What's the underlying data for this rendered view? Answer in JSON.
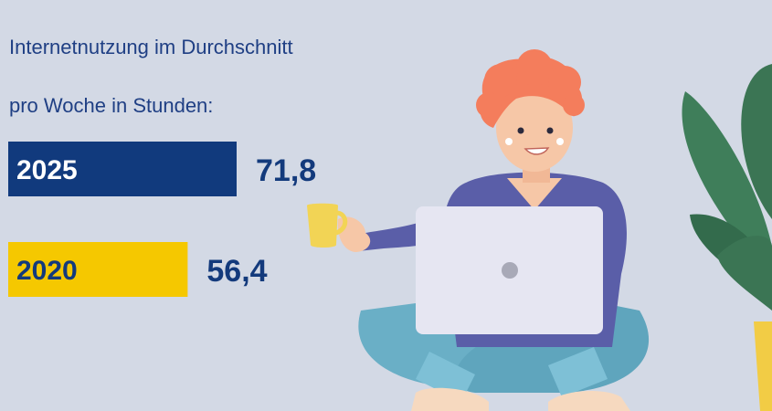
{
  "title_line1": "Internetnutzung im Durchschnitt",
  "title_line2": "pro Woche in Stunden:",
  "chart_data": {
    "type": "bar",
    "orientation": "horizontal",
    "title": "Internetnutzung im Durchschnitt pro Woche in Stunden:",
    "categories": [
      "2025",
      "2020"
    ],
    "values": [
      71.8,
      56.4
    ],
    "value_labels": [
      "71,8",
      "56,4"
    ],
    "xlim": [
      0,
      71.8
    ],
    "xlabel": "",
    "ylabel": "",
    "grid": false,
    "legend": "none",
    "colors": [
      "#113a7d",
      "#f5c800"
    ],
    "label_colors": [
      "#ffffff",
      "#133a7c"
    ]
  },
  "illustration": {
    "subject": "woman-with-laptop-and-mug",
    "plant": "potted-plant",
    "colors": {
      "hair": "#f47d5c",
      "skin": "#f6c7a7",
      "sweater": "#5a5ea8",
      "pants": "#6aafc6",
      "laptop": "#e6e6f2",
      "mug": "#f2d455",
      "leaf": "#3b7554",
      "pot": "#f2cc45"
    }
  }
}
